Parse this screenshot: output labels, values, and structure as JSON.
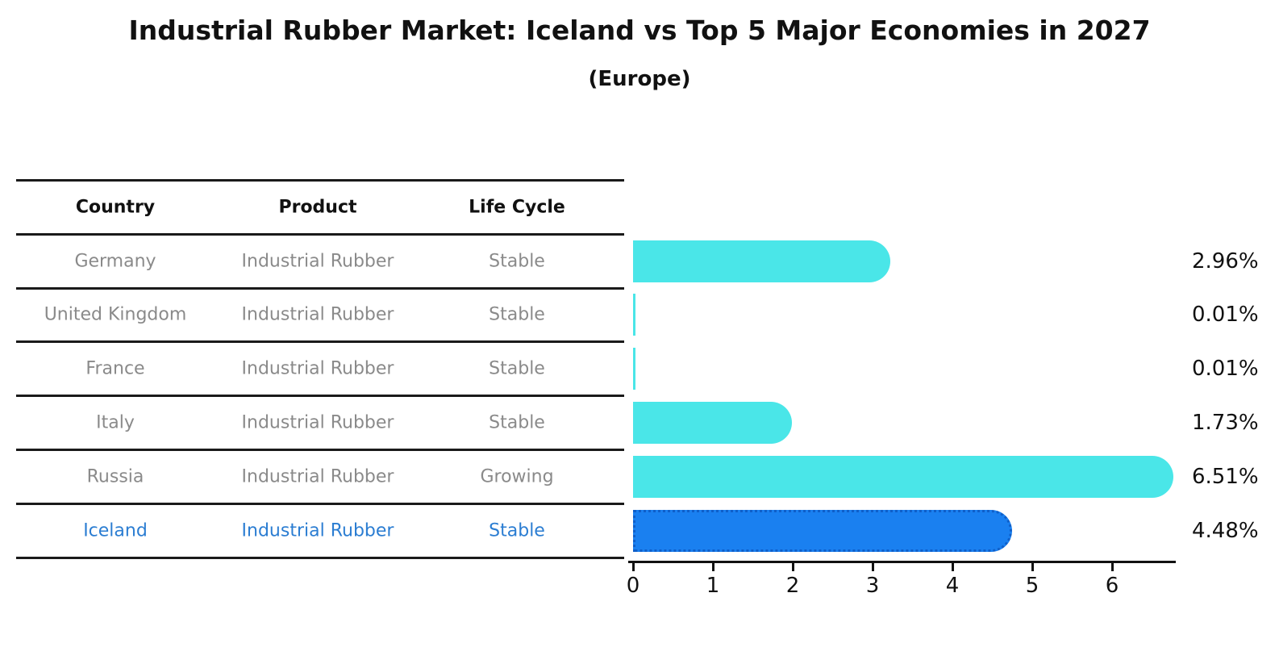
{
  "header": {
    "title": "Industrial Rubber Market: Iceland vs Top 5 Major Economies in 2027",
    "subtitle": "(Europe)"
  },
  "table": {
    "columns": [
      "Country",
      "Product",
      "Life Cycle"
    ],
    "rows": [
      {
        "country": "Germany",
        "product": "Industrial Rubber",
        "life_cycle": "Stable",
        "highlight": false
      },
      {
        "country": "United Kingdom",
        "product": "Industrial Rubber",
        "life_cycle": "Stable",
        "highlight": false
      },
      {
        "country": "France",
        "product": "Industrial Rubber",
        "life_cycle": "Stable",
        "highlight": false
      },
      {
        "country": "Italy",
        "product": "Industrial Rubber",
        "life_cycle": "Stable",
        "highlight": false
      },
      {
        "country": "Russia",
        "product": "Industrial Rubber",
        "life_cycle": "Growing",
        "highlight": false
      },
      {
        "country": "Iceland",
        "product": "Industrial Rubber",
        "life_cycle": "Stable",
        "highlight": true
      }
    ],
    "header_text_color": "#111111",
    "row_text_color": "#8a8a8a",
    "highlight_text_color": "#2b7dd2"
  },
  "chart_data": {
    "type": "bar",
    "orientation": "horizontal",
    "title": "Industrial Rubber Market: Iceland vs Top 5 Major Economies in 2027 (Europe)",
    "categories": [
      "Germany",
      "United Kingdom",
      "France",
      "Italy",
      "Russia",
      "Iceland"
    ],
    "values": [
      2.96,
      0.01,
      0.01,
      1.73,
      6.51,
      4.48
    ],
    "value_labels": [
      "2.96%",
      "0.01%",
      "0.01%",
      "1.73%",
      "6.51%",
      "4.48%"
    ],
    "xlabel": "",
    "ylabel": "",
    "xlim": [
      0,
      6.9
    ],
    "x_ticks": [
      "0",
      "1",
      "2",
      "3",
      "4",
      "5",
      "6"
    ],
    "grid": false,
    "legend": null,
    "bar_color": "#4ae6e8",
    "highlight_bar_color": "#1a80f0",
    "highlight_border_color": "#0f5fc9",
    "highlight_index": 5,
    "axis_color": "#111111"
  }
}
